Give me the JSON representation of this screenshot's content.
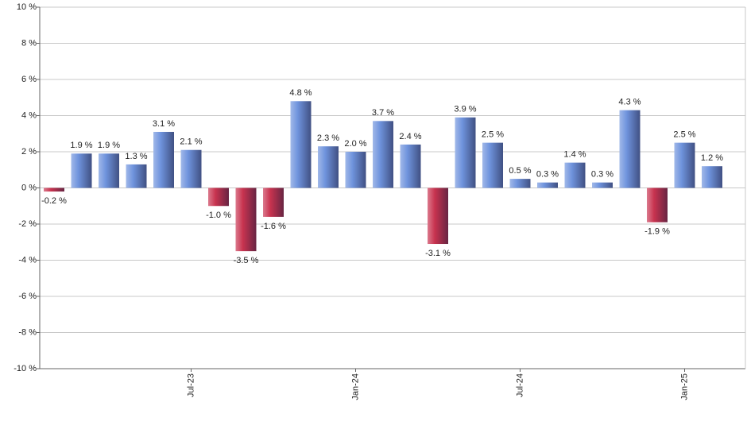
{
  "chart_data": {
    "type": "bar",
    "categories": [
      null,
      null,
      null,
      null,
      null,
      "Jul-23",
      null,
      null,
      null,
      null,
      null,
      "Jan-24",
      null,
      null,
      null,
      null,
      null,
      "Jul-24",
      null,
      null,
      null,
      null,
      null,
      "Jan-25",
      null
    ],
    "values": [
      -0.2,
      1.9,
      1.9,
      1.3,
      3.1,
      2.1,
      -1.0,
      -3.5,
      -1.6,
      4.8,
      2.3,
      2.0,
      3.7,
      2.4,
      -3.1,
      3.9,
      2.5,
      0.5,
      0.3,
      1.4,
      0.3,
      4.3,
      -1.9,
      2.5,
      1.2
    ],
    "value_labels": [
      "-0.2 %",
      "1.9 %",
      "1.9 %",
      "1.3 %",
      "3.1 %",
      "2.1 %",
      "-1.0 %",
      "-3.5 %",
      "-1.6 %",
      "4.8 %",
      "2.3 %",
      "2.0 %",
      "3.7 %",
      "2.4 %",
      "-3.1 %",
      "3.9 %",
      "2.5 %",
      "0.5 %",
      "0.3 %",
      "1.4 %",
      "0.3 %",
      "4.3 %",
      "-1.9 %",
      "2.5 %",
      "1.2 %"
    ],
    "positive_color": "#6f93dd",
    "negative_color": "#c8334f",
    "ylim": [
      -10,
      10
    ],
    "yticks": [
      {
        "value": -10,
        "label": "-10 %"
      },
      {
        "value": -8,
        "label": "-8 %"
      },
      {
        "value": -6,
        "label": "-6 %"
      },
      {
        "value": -4,
        "label": "-4 %"
      },
      {
        "value": -2,
        "label": "-2 %"
      },
      {
        "value": 0,
        "label": "0 %"
      },
      {
        "value": 2,
        "label": "2 %"
      },
      {
        "value": 4,
        "label": "4 %"
      },
      {
        "value": 6,
        "label": "6 %"
      },
      {
        "value": 8,
        "label": "8 %"
      },
      {
        "value": 10,
        "label": "10 %"
      }
    ],
    "grid": true
  }
}
